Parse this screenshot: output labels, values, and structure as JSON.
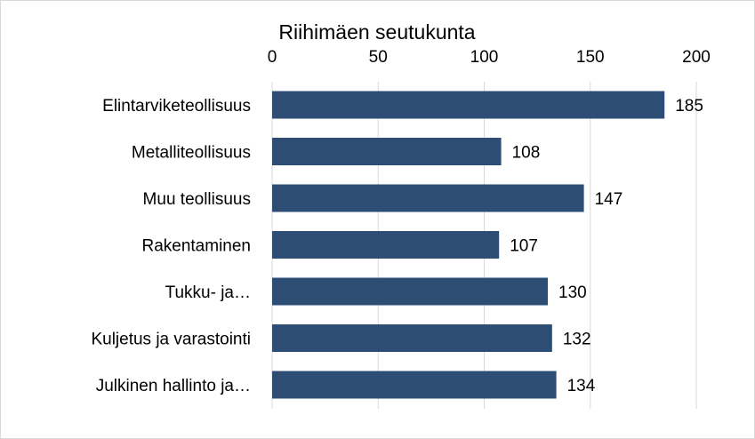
{
  "chart_data": {
    "type": "bar",
    "orientation": "horizontal",
    "title": "Riihimäen seutukunta",
    "xlabel": "",
    "ylabel": "",
    "categories": [
      "Elintarviketeollisuus",
      "Metalliteollisuus",
      "Muu teollisuus",
      "Rakentaminen",
      "Tukku- ja…",
      "Kuljetus ja varastointi",
      "Julkinen hallinto ja…"
    ],
    "values": [
      185,
      108,
      147,
      107,
      130,
      132,
      134
    ],
    "xlim": [
      0,
      200
    ],
    "ticks": [
      0,
      50,
      100,
      150,
      200
    ],
    "tick_axis_position": "top",
    "grid": true,
    "legend": "none",
    "data_labels": true,
    "colors": {
      "bar": "#2e4d74",
      "grid": "#d9d9d9",
      "text": "#000000",
      "border": "#d9d9d9"
    }
  }
}
